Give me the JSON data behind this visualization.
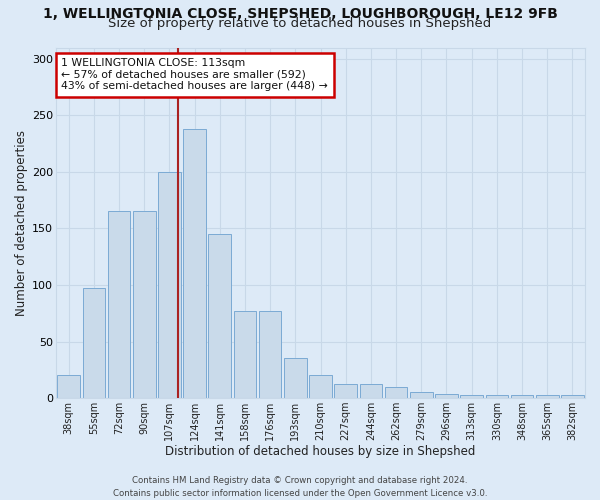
{
  "title": "1, WELLINGTONIA CLOSE, SHEPSHED, LOUGHBOROUGH, LE12 9FB",
  "subtitle": "Size of property relative to detached houses in Shepshed",
  "xlabel": "Distribution of detached houses by size in Shepshed",
  "ylabel": "Number of detached properties",
  "bar_labels": [
    "38sqm",
    "55sqm",
    "72sqm",
    "90sqm",
    "107sqm",
    "124sqm",
    "141sqm",
    "158sqm",
    "176sqm",
    "193sqm",
    "210sqm",
    "227sqm",
    "244sqm",
    "262sqm",
    "279sqm",
    "296sqm",
    "313sqm",
    "330sqm",
    "348sqm",
    "365sqm",
    "382sqm"
  ],
  "bar_heights": [
    20,
    97,
    165,
    165,
    200,
    238,
    145,
    77,
    77,
    35,
    20,
    12,
    12,
    10,
    5,
    4,
    3,
    3,
    3,
    3,
    3
  ],
  "bar_color": "#c9daea",
  "bar_edge_color": "#7baad4",
  "grid_color": "#c8d8e8",
  "background_color": "#ddeaf7",
  "vline_color": "#aa2222",
  "annotation_line1": "1 WELLINGTONIA CLOSE: 113sqm",
  "annotation_line2": "← 57% of detached houses are smaller (592)",
  "annotation_line3": "43% of semi-detached houses are larger (448) →",
  "annotation_box_color": "#ffffff",
  "annotation_box_edge": "#cc0000",
  "footer_line1": "Contains HM Land Registry data © Crown copyright and database right 2024.",
  "footer_line2": "Contains public sector information licensed under the Open Government Licence v3.0.",
  "ylim_max": 310,
  "title_fontsize": 10,
  "subtitle_fontsize": 9.5
}
